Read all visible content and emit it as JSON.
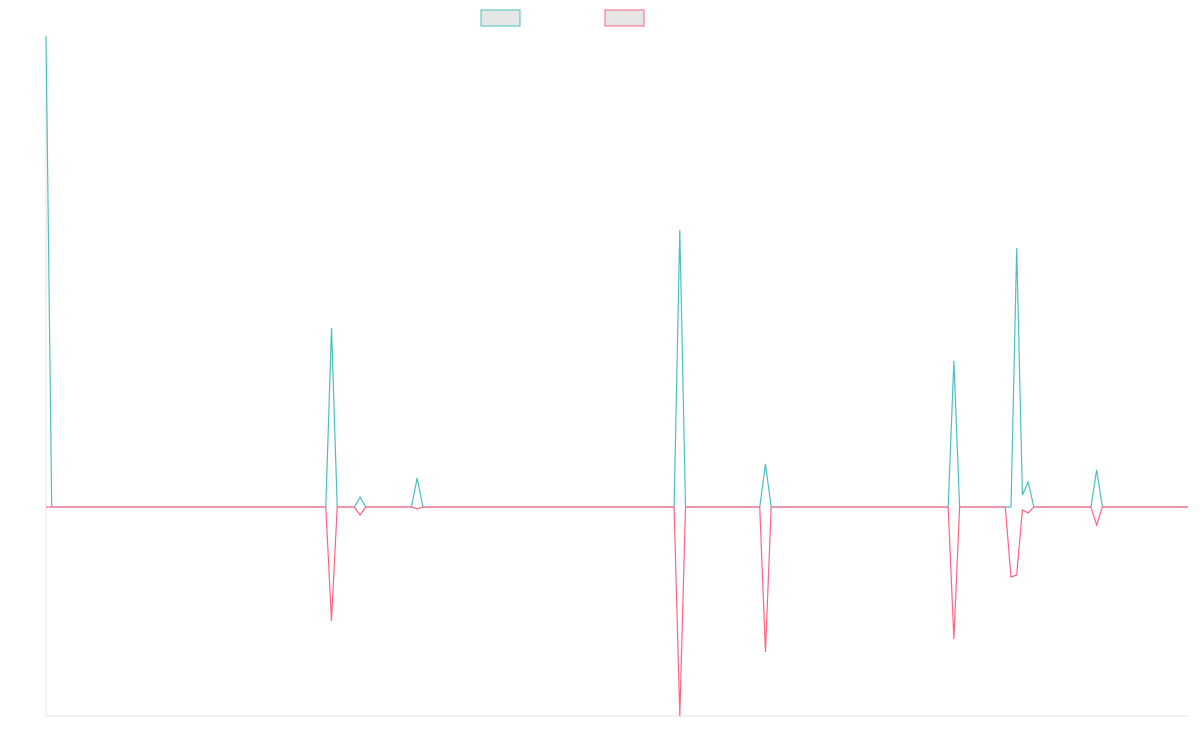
{
  "chart_data": {
    "type": "line",
    "ylim": [
      -209,
      471
    ],
    "series": [
      {
        "color": "#4bc0c0",
        "values": [
          471,
          0,
          0,
          0,
          0,
          0,
          0,
          0,
          0,
          0,
          0,
          0,
          0,
          0,
          0,
          0,
          0,
          0,
          0,
          0,
          0,
          0,
          0,
          0,
          0,
          0,
          0,
          0,
          0,
          0,
          0,
          0,
          0,
          0,
          0,
          0,
          0,
          0,
          0,
          0,
          0,
          0,
          0,
          0,
          0,
          0,
          0,
          0,
          0,
          0,
          179,
          0,
          0,
          0,
          0,
          10,
          0,
          0,
          0,
          0,
          0,
          0,
          0,
          0,
          0,
          29,
          0,
          0,
          0,
          0,
          0,
          0,
          0,
          0,
          0,
          0,
          0,
          0,
          0,
          0,
          0,
          0,
          0,
          0,
          0,
          0,
          0,
          0,
          0,
          0,
          0,
          0,
          0,
          0,
          0,
          0,
          0,
          0,
          0,
          0,
          0,
          0,
          0,
          0,
          0,
          0,
          0,
          0,
          0,
          0,
          0,
          277,
          0,
          0,
          0,
          0,
          0,
          0,
          0,
          0,
          0,
          0,
          0,
          0,
          0,
          0,
          43,
          0,
          0,
          0,
          0,
          0,
          0,
          0,
          0,
          0,
          0,
          0,
          0,
          0,
          0,
          0,
          0,
          0,
          0,
          0,
          0,
          0,
          0,
          0,
          0,
          0,
          0,
          0,
          0,
          0,
          0,
          0,
          0,
          146,
          0,
          0,
          0,
          0,
          0,
          0,
          0,
          0,
          0,
          0,
          259,
          12,
          25,
          0,
          0,
          0,
          0,
          0,
          0,
          0,
          0,
          0,
          0,
          0,
          37,
          0,
          0,
          0,
          0,
          0,
          0,
          0,
          0,
          0,
          0,
          0,
          0,
          0,
          0,
          0,
          0
        ]
      },
      {
        "color": "#ff6384",
        "values": [
          0,
          0,
          0,
          0,
          0,
          0,
          0,
          0,
          0,
          0,
          0,
          0,
          0,
          0,
          0,
          0,
          0,
          0,
          0,
          0,
          0,
          0,
          0,
          0,
          0,
          0,
          0,
          0,
          0,
          0,
          0,
          0,
          0,
          0,
          0,
          0,
          0,
          0,
          0,
          0,
          0,
          0,
          0,
          0,
          0,
          0,
          0,
          0,
          0,
          0,
          -114,
          0,
          0,
          0,
          0,
          -8,
          0,
          0,
          0,
          0,
          0,
          0,
          0,
          0,
          0,
          -2,
          0,
          0,
          0,
          0,
          0,
          0,
          0,
          0,
          0,
          0,
          0,
          0,
          0,
          0,
          0,
          0,
          0,
          0,
          0,
          0,
          0,
          0,
          0,
          0,
          0,
          0,
          0,
          0,
          0,
          0,
          0,
          0,
          0,
          0,
          0,
          0,
          0,
          0,
          0,
          0,
          0,
          0,
          0,
          0,
          0,
          -209,
          0,
          0,
          0,
          0,
          0,
          0,
          0,
          0,
          0,
          0,
          0,
          0,
          0,
          0,
          -145,
          0,
          0,
          0,
          0,
          0,
          0,
          0,
          0,
          0,
          0,
          0,
          0,
          0,
          0,
          0,
          0,
          0,
          0,
          0,
          0,
          0,
          0,
          0,
          0,
          0,
          0,
          0,
          0,
          0,
          0,
          0,
          0,
          -132,
          0,
          0,
          0,
          0,
          0,
          0,
          0,
          0,
          0,
          -70,
          -68,
          -3,
          -6,
          0,
          0,
          0,
          0,
          0,
          0,
          0,
          0,
          0,
          0,
          0,
          -18,
          0,
          0,
          0,
          0,
          0,
          0,
          0,
          0,
          0,
          0,
          0,
          0,
          0,
          0,
          0,
          0
        ]
      }
    ]
  }
}
